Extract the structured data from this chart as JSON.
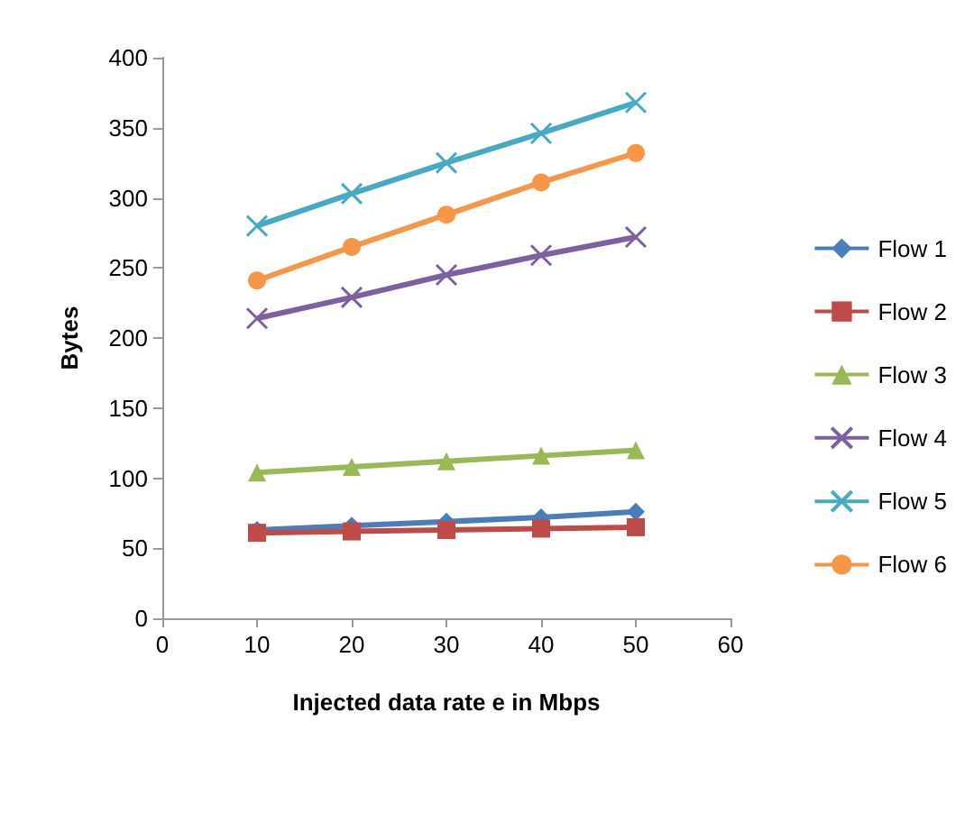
{
  "chart_data": {
    "type": "line",
    "xlabel": "Injected data rate e in Mbps",
    "ylabel": "Bytes",
    "x": [
      10,
      20,
      30,
      40,
      50
    ],
    "xlim": [
      0,
      60
    ],
    "xticks": [
      0,
      10,
      20,
      30,
      40,
      50,
      60
    ],
    "ylim": [
      0,
      400
    ],
    "yticks": [
      0,
      50,
      100,
      150,
      200,
      250,
      300,
      350,
      400
    ],
    "grid": false,
    "legend": "right",
    "series": [
      {
        "name": "Flow 1",
        "color": "#4a7ebb",
        "marker": "diamond",
        "values": [
          63,
          66,
          69,
          72,
          76
        ]
      },
      {
        "name": "Flow 2",
        "color": "#be4b48",
        "marker": "square",
        "values": [
          61,
          62,
          63,
          64,
          65
        ]
      },
      {
        "name": "Flow 3",
        "color": "#98b954",
        "marker": "triangle",
        "values": [
          104,
          108,
          112,
          116,
          120
        ]
      },
      {
        "name": "Flow 4",
        "color": "#7d60a0",
        "marker": "cross",
        "values": [
          214,
          229,
          245,
          259,
          272
        ]
      },
      {
        "name": "Flow 5",
        "color": "#46aac5",
        "marker": "cross",
        "values": [
          280,
          303,
          325,
          346,
          368
        ]
      },
      {
        "name": "Flow 6",
        "color": "#f79646",
        "marker": "circle",
        "values": [
          241,
          265,
          288,
          311,
          332
        ]
      }
    ]
  }
}
